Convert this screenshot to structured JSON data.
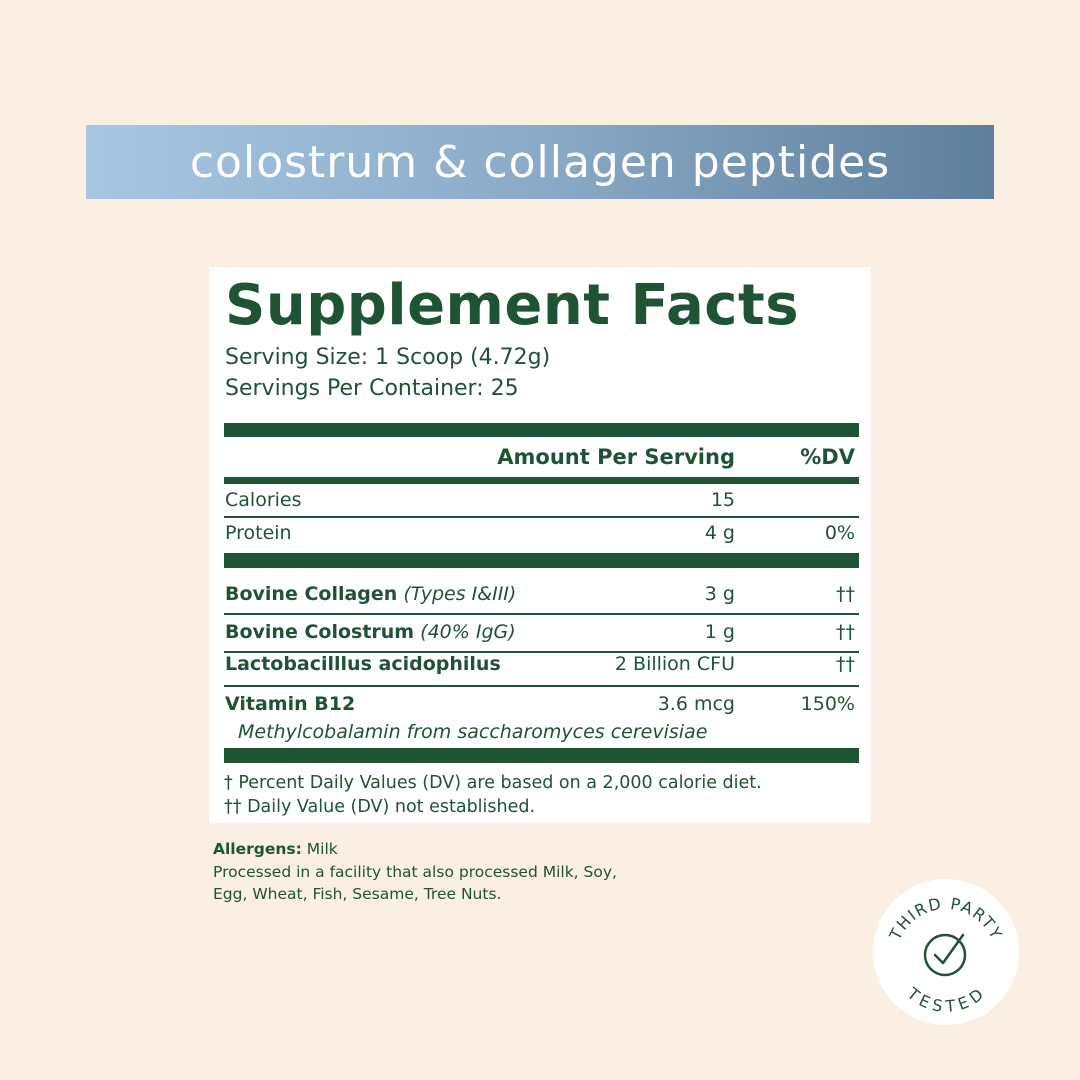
{
  "banner": {
    "title": "colostrum & collagen peptides"
  },
  "facts": {
    "title": "Supplement Facts",
    "serving_size": "Serving Size: 1 Scoop (4.72g)",
    "servings_per_container": "Servings Per Container: 25",
    "header_amount": "Amount Per Serving",
    "header_dv": "%DV",
    "rows": [
      {
        "name": "Calories",
        "amount": "15",
        "dv": ""
      },
      {
        "name": "Protein",
        "amount": "4 g",
        "dv": "0%"
      },
      {
        "name": "Bovine Collagen",
        "note": "(Types I&III)",
        "amount": "3 g",
        "dv": "††"
      },
      {
        "name": "Bovine Colostrum",
        "note": "(40% IgG)",
        "amount": "1 g",
        "dv": "††"
      },
      {
        "name": "Lactobacilllus acidophilus",
        "amount": "2 Billion CFU",
        "dv": "††"
      },
      {
        "name": "Vitamin B12",
        "amount": "3.6 mcg",
        "dv": "150%",
        "source": "Methylcobalamin from saccharomyces cerevisiae"
      }
    ],
    "footnote_1": "† Percent Daily Values (DV) are based on a 2,000 calorie diet.",
    "footnote_2": "†† Daily Value (DV) not established."
  },
  "allergens": {
    "label": "Allergens:",
    "value": "Milk",
    "line_1": "Processed in a facility that also processed Milk, Soy,",
    "line_2": "Egg, Wheat, Fish, Sesame, Tree Nuts."
  },
  "badge": {
    "top_text": "THIRD PARTY",
    "bottom_text": "TESTED",
    "icon": "check-circle-icon"
  },
  "colors": {
    "green": "#1e5434",
    "background": "#fbefe4",
    "banner_start": "#a6c6e2",
    "banner_end": "#5e7f9c"
  }
}
